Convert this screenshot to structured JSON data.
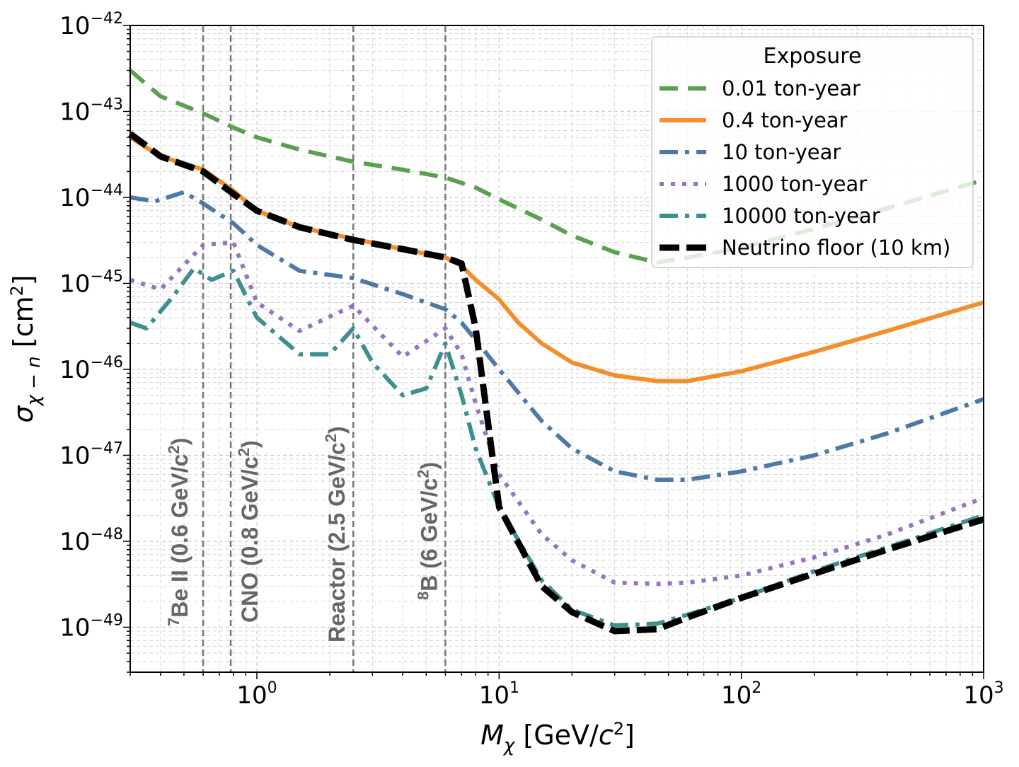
{
  "chart_data": {
    "type": "line",
    "x_scale": "log",
    "y_scale": "log",
    "xlim": [
      0.3,
      1000
    ],
    "ylim": [
      3e-50,
      1e-42
    ],
    "xlabel": "M_χ [GeV/c²]",
    "ylabel": "σ_χ−n [cm²]",
    "grid": true,
    "x_ticks": [
      {
        "base": "10",
        "exp": "0",
        "value": 1
      },
      {
        "base": "10",
        "exp": "1",
        "value": 10
      },
      {
        "base": "10",
        "exp": "2",
        "value": 100
      },
      {
        "base": "10",
        "exp": "3",
        "value": 1000
      }
    ],
    "y_ticks": [
      {
        "base": "10",
        "exp": "−42",
        "value": -42
      },
      {
        "base": "10",
        "exp": "−43",
        "value": -43
      },
      {
        "base": "10",
        "exp": "−44",
        "value": -44
      },
      {
        "base": "10",
        "exp": "−45",
        "value": -45
      },
      {
        "base": "10",
        "exp": "−46",
        "value": -46
      },
      {
        "base": "10",
        "exp": "−47",
        "value": -47
      },
      {
        "base": "10",
        "exp": "−48",
        "value": -48
      },
      {
        "base": "10",
        "exp": "−49",
        "value": -49
      }
    ],
    "legend": {
      "title": "Exposure",
      "placement": "upper right"
    },
    "series": [
      {
        "name": "0.01 ton-year",
        "color": "#59a14f",
        "dash": "dashed",
        "x": [
          0.3,
          0.4,
          0.6,
          0.8,
          1.0,
          1.5,
          2.5,
          4.0,
          6.0,
          8.0,
          10,
          15,
          20,
          30,
          45,
          60,
          100,
          200,
          400,
          1000
        ],
        "y": [
          3e-43,
          1.5e-43,
          9.5e-44,
          6.5e-44,
          5e-44,
          3.6e-44,
          2.6e-44,
          2.1e-44,
          1.7e-44,
          1.3e-44,
          9.5e-45,
          5.5e-45,
          3.6e-45,
          2.3e-45,
          1.75e-45,
          2e-45,
          2.6e-45,
          4.3e-45,
          7.5e-45,
          1.6e-44
        ]
      },
      {
        "name": "0.4 ton-year",
        "color": "#f28e2b",
        "dash": "solid",
        "x": [
          0.3,
          0.4,
          0.6,
          0.8,
          1.0,
          1.5,
          2.5,
          4.0,
          6.0,
          7.0,
          8.0,
          10,
          12,
          15,
          20,
          30,
          45,
          60,
          100,
          200,
          400,
          1000
        ],
        "y": [
          5e-44,
          3e-44,
          2.1e-44,
          1.2e-44,
          7e-45,
          4.5e-45,
          3.3e-45,
          2.5e-45,
          2e-45,
          1.6e-45,
          1.1e-45,
          6.5e-46,
          3.5e-46,
          2e-46,
          1.2e-46,
          8.5e-47,
          7.3e-47,
          7.3e-47,
          9.5e-47,
          1.6e-46,
          2.8e-46,
          6e-46
        ]
      },
      {
        "name": "10 ton-year",
        "color": "#4e79a7",
        "dash": "dashdot",
        "x": [
          0.3,
          0.38,
          0.5,
          0.6,
          0.8,
          1.0,
          1.5,
          2.5,
          4.0,
          6.0,
          7.0,
          8.0,
          10,
          15,
          20,
          30,
          45,
          60,
          100,
          200,
          400,
          1000
        ],
        "y": [
          1e-44,
          9e-45,
          1.15e-44,
          8.5e-45,
          5e-45,
          2.8e-45,
          1.4e-45,
          1.15e-45,
          7.5e-46,
          5e-46,
          3.5e-46,
          2.2e-46,
          1e-46,
          2.5e-47,
          1.2e-47,
          6.5e-48,
          5.2e-48,
          5.2e-48,
          6.5e-48,
          1e-47,
          1.8e-47,
          4.5e-47
        ]
      },
      {
        "name": "1000 ton-year",
        "color": "#9673c4",
        "dash": "dotted",
        "x": [
          0.3,
          0.4,
          0.6,
          0.8,
          1.0,
          1.5,
          2.5,
          4.0,
          6.0,
          7.0,
          8.0,
          10,
          15,
          20,
          30,
          45,
          60,
          100,
          200,
          400,
          1000
        ],
        "y": [
          1.1e-45,
          8.5e-46,
          2.8e-45,
          3e-45,
          6e-46,
          2.8e-46,
          5.5e-46,
          1.4e-46,
          3e-46,
          1.5e-46,
          4e-47,
          6e-48,
          1.2e-48,
          6e-49,
          3.3e-49,
          3.2e-49,
          3.3e-49,
          4e-49,
          6.5e-49,
          1.2e-48,
          3.2e-48
        ]
      },
      {
        "name": "10000 ton-year",
        "color": "#3e8f8f",
        "dash": "dashdot",
        "x": [
          0.3,
          0.35,
          0.45,
          0.55,
          0.65,
          0.8,
          1.0,
          1.5,
          2.0,
          2.5,
          3.0,
          4.0,
          5.0,
          6.0,
          7.0,
          8.0,
          10,
          15,
          20,
          30,
          45,
          60,
          100,
          200,
          400,
          1000
        ],
        "y": [
          3.5e-46,
          3e-46,
          7e-46,
          1.5e-45,
          1.1e-45,
          1.4e-45,
          4e-46,
          1.5e-46,
          1.5e-46,
          3e-46,
          1.2e-46,
          5e-47,
          6e-47,
          2e-46,
          5e-47,
          1.2e-47,
          2.5e-48,
          3.5e-49,
          1.6e-49,
          1.05e-49,
          1.1e-49,
          1.4e-49,
          2.2e-49,
          4.5e-49,
          8.5e-49,
          2e-48
        ]
      },
      {
        "name": "Neutrino floor (10 km)",
        "color": "#000000",
        "dash": "dashed-bold",
        "x": [
          0.3,
          0.4,
          0.6,
          0.8,
          1.0,
          1.5,
          2.5,
          4.0,
          6.0,
          7.0,
          8.0,
          10,
          15,
          20,
          30,
          45,
          60,
          100,
          200,
          400,
          1000
        ],
        "y": [
          5.5e-44,
          3e-44,
          2e-44,
          1.1e-44,
          7e-45,
          4.5e-45,
          3.2e-45,
          2.5e-45,
          2e-45,
          1.7e-45,
          3e-46,
          2.5e-48,
          3e-49,
          1.5e-49,
          9e-50,
          9.5e-50,
          1.3e-49,
          2.2e-49,
          4.2e-49,
          8e-49,
          1.8e-48
        ]
      }
    ],
    "vlines": [
      {
        "x": 0.6,
        "label_main": "Be II (0.6 GeV/c",
        "label_sup1": "7",
        "label_sup2": "2",
        "label_end": ")"
      },
      {
        "x": 0.78,
        "label_main": "CNO (0.8 GeV/c",
        "label_sup1": "",
        "label_sup2": "2",
        "label_end": ")"
      },
      {
        "x": 2.5,
        "label_main": "Reactor (2.5 GeV/c",
        "label_sup1": "",
        "label_sup2": "2",
        "label_end": ")"
      },
      {
        "x": 6.0,
        "label_main": "B (6 GeV/c",
        "label_sup1": "8",
        "label_sup2": "2",
        "label_end": ")"
      }
    ]
  }
}
